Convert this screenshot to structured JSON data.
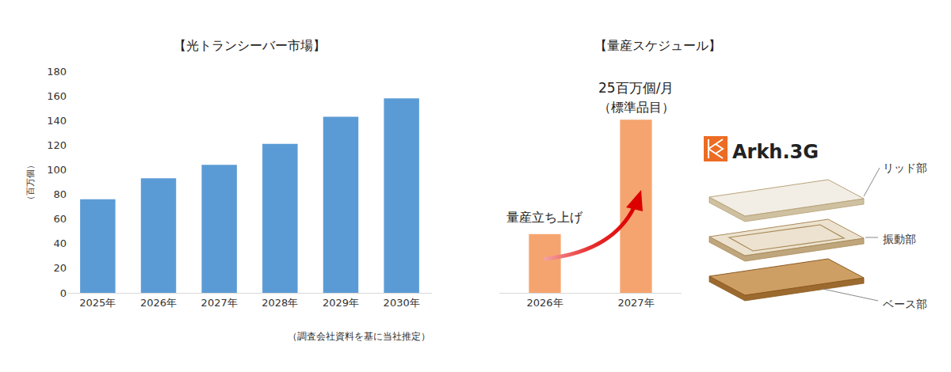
{
  "chart_data": [
    {
      "type": "bar",
      "title": "【光トランシーバー市場】",
      "ylabel": "（百万個）",
      "categories": [
        "2025年",
        "2026年",
        "2027年",
        "2028年",
        "2029年",
        "2030年"
      ],
      "values": [
        76,
        93,
        104,
        121,
        143,
        158
      ],
      "color": "#5b9bd5",
      "ylim": [
        0,
        180
      ],
      "yticks": [
        0,
        20,
        40,
        60,
        80,
        100,
        120,
        140,
        160,
        180
      ],
      "grid": false,
      "note": "（調査会社資料を基に当社推定）"
    },
    {
      "type": "bar",
      "title": "【量産スケジュール】",
      "categories": [
        "2026年",
        "2027年"
      ],
      "values": [
        8.5,
        25
      ],
      "color": "#f5a46f",
      "ylim": [
        0,
        32
      ],
      "tick_labels": "x",
      "data_labels": true,
      "value_labels": [
        null,
        "25百万個/月"
      ],
      "annotations": [
        {
          "text": "（標準品目）",
          "category": "2027年"
        },
        {
          "text": "量産立ち上げ",
          "category": "2026年"
        }
      ]
    }
  ],
  "diagram": {
    "logo": "Arkh.3G",
    "layers": [
      "リッド部",
      "振動部",
      "ベース部"
    ]
  }
}
